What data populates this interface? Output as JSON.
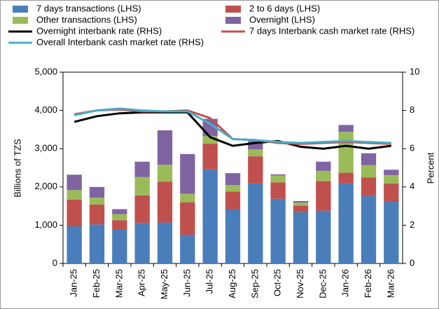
{
  "chart_data": {
    "type": "bar_line",
    "y_label": "Billions of TZS",
    "y2_label": "Percent",
    "categories": [
      "Jan-25",
      "Feb-25",
      "Mar-25",
      "Apr-25",
      "May-25",
      "Jun-25",
      "Jul-25",
      "Aug-25",
      "Sep-25",
      "Oct-25",
      "Nov-25",
      "Dec-25",
      "Jan-26",
      "Feb-26",
      "Mar-26"
    ],
    "ylim": [
      0,
      5000
    ],
    "yticks": [
      0,
      {
        "value": 1000,
        "label": "1,000"
      },
      {
        "value": 2000,
        "label": "2,000"
      },
      {
        "value": 3000,
        "label": "3,000"
      },
      {
        "value": 4000,
        "label": "4,000"
      },
      {
        "value": 5000,
        "label": "5,000"
      }
    ],
    "y2lim": [
      0,
      10
    ],
    "y2ticks": [
      0,
      2,
      4,
      6,
      8,
      10
    ],
    "series": [
      {
        "name": "7 days transactions (LHS)",
        "color": "#4a7ebb",
        "kind": "bar",
        "values": [
          970,
          1020,
          880,
          1060,
          1070,
          750,
          2460,
          1420,
          2090,
          1690,
          1340,
          1380,
          2090,
          1760,
          1620
        ]
      },
      {
        "name": "2 to 6 days (LHS)",
        "color": "#c0504d",
        "kind": "bar",
        "values": [
          700,
          520,
          250,
          720,
          1070,
          850,
          670,
          460,
          710,
          430,
          170,
          770,
          280,
          490,
          470
        ]
      },
      {
        "name": "Other transactions (LHS)",
        "color": "#9bbb59",
        "kind": "bar",
        "values": [
          250,
          180,
          160,
          480,
          440,
          220,
          200,
          170,
          180,
          180,
          80,
          270,
          1070,
          320,
          220
        ]
      },
      {
        "name": "Overnight (LHS)",
        "color": "#8064a2",
        "kind": "bar",
        "values": [
          400,
          280,
          130,
          400,
          900,
          1040,
          450,
          310,
          220,
          30,
          40,
          240,
          180,
          310,
          140
        ]
      },
      {
        "name": "Overnight interbank rate (RHS)",
        "color": "#000000",
        "kind": "line",
        "axis": "y2",
        "values": [
          7.4,
          7.7,
          7.85,
          7.9,
          7.9,
          7.9,
          6.6,
          6.15,
          6.3,
          6.4,
          6.1,
          6.0,
          6.15,
          6.0,
          6.15
        ]
      },
      {
        "name": "7 days Interbank cash market rate (RHS)",
        "color": "#c0504d",
        "kind": "line",
        "axis": "y2",
        "values": [
          7.8,
          8.0,
          8.05,
          7.95,
          7.95,
          8.0,
          7.6,
          6.5,
          6.45,
          6.3,
          6.25,
          6.3,
          6.35,
          6.3,
          6.25
        ]
      },
      {
        "name": "Overall Interbank cash market rate (RHS)",
        "color": "#4bacc6",
        "kind": "line",
        "axis": "y2",
        "values": [
          7.75,
          8.0,
          8.1,
          8.0,
          7.95,
          7.95,
          7.3,
          6.5,
          6.45,
          6.35,
          6.3,
          6.35,
          6.4,
          6.35,
          6.3
        ]
      }
    ]
  }
}
